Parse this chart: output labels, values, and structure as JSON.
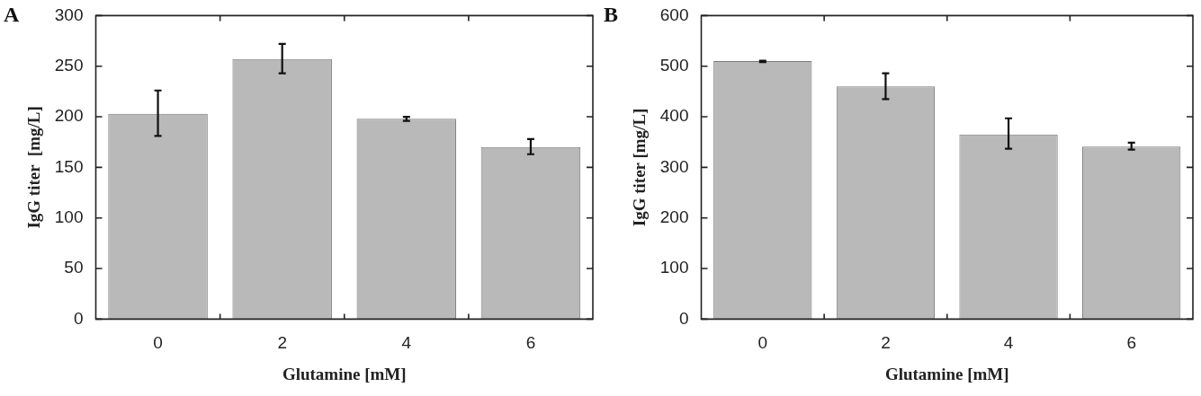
{
  "chart_data": [
    {
      "type": "bar",
      "title": "A",
      "xlabel": "Glutamine [mM]",
      "ylabel": "IgG titer  [mg/L]",
      "categories": [
        "0",
        "2",
        "4",
        "6"
      ],
      "values": [
        203,
        257,
        198,
        170
      ],
      "errors": [
        [
          181,
          226
        ],
        [
          243,
          272
        ],
        [
          196,
          200
        ],
        [
          163,
          178
        ]
      ],
      "color": "#b9b9b9",
      "ylim": [
        0,
        300
      ],
      "yticks": [
        0,
        50,
        100,
        150,
        200,
        250,
        300
      ],
      "grid": false
    },
    {
      "type": "bar",
      "title": "B",
      "xlabel": "Glutamine [mM]",
      "ylabel": "IgG titer [mg/L]",
      "categories": [
        "0",
        "2",
        "4",
        "6"
      ],
      "values": [
        510,
        460,
        365,
        341
      ],
      "errors": [
        [
          508,
          511
        ],
        [
          435,
          486
        ],
        [
          337,
          397
        ],
        [
          335,
          349
        ]
      ],
      "color": "#b9b9b9",
      "ylim": [
        0,
        600
      ],
      "yticks": [
        0,
        100,
        200,
        300,
        400,
        500,
        600
      ],
      "grid": false
    }
  ]
}
